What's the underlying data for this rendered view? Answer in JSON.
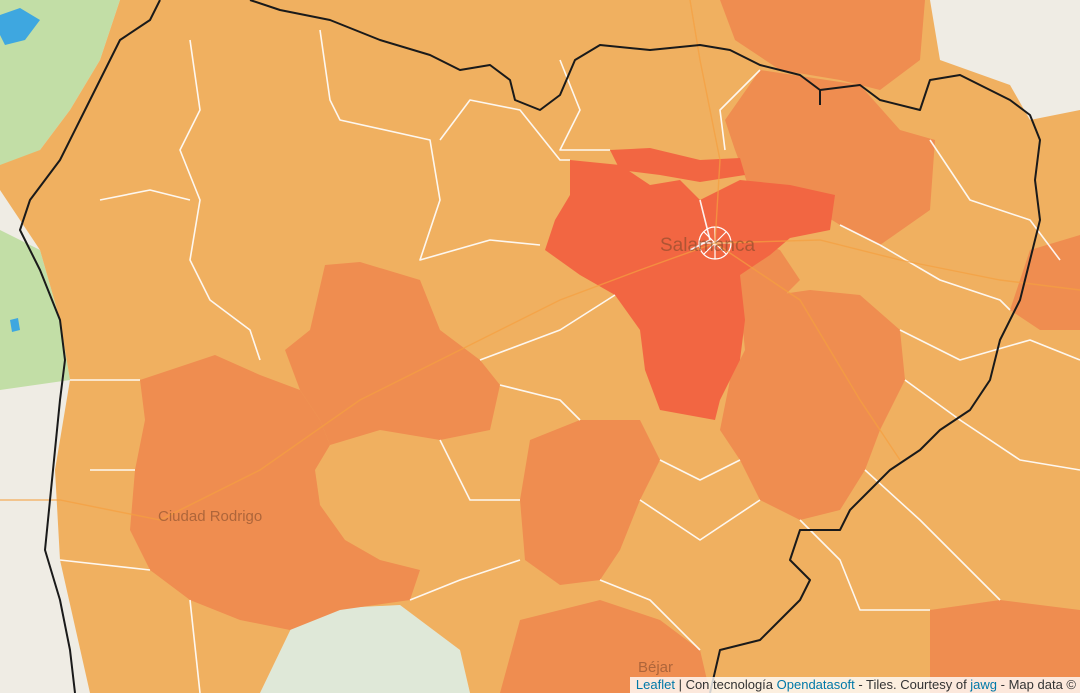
{
  "map": {
    "labels": {
      "city_main": "Salamanca",
      "city_west": "Ciudad Rodrigo",
      "city_south": "Béjar"
    },
    "colors": {
      "low": "#f0b060",
      "mid": "#ef8d50",
      "high": "#f26642",
      "background": "#efece4",
      "green": "#c2dea6",
      "water": "#3ea7e0",
      "border": "#1a1a1a"
    }
  },
  "attribution": {
    "leaflet": "Leaflet",
    "sep": " | ",
    "tech_prefix": "Con tecnología ",
    "opendatasoft": "Opendatasoft",
    "tiles_text": " - Tiles. Courtesy of ",
    "jawg": "jawg",
    "mapdata_text": " - Map data ©"
  }
}
